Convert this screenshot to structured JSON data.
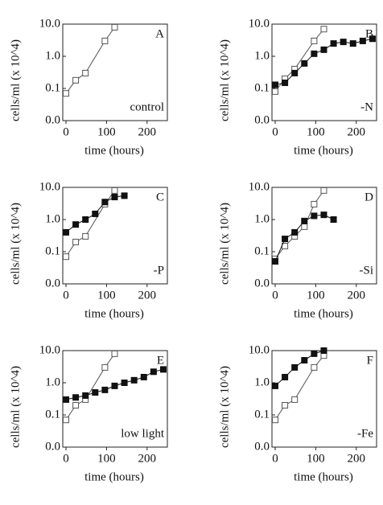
{
  "chart_data": [
    {
      "type": "line",
      "panel_label": "A",
      "annotation": "control",
      "x_label": "time (hours)",
      "y_label": "cells/ml (x 10^4)",
      "xlim": [
        0,
        250
      ],
      "ylim": [
        0.01,
        10
      ],
      "log_y": true,
      "xticks": [
        0,
        100,
        200
      ],
      "yticks": [
        {
          "value": 0.01,
          "label": "0.0"
        },
        {
          "value": 0.1,
          "label": "0.1"
        },
        {
          "value": 1,
          "label": "1.0"
        },
        {
          "value": 10,
          "label": "10.0"
        }
      ],
      "series": [
        {
          "color": "#555555",
          "marker": "open",
          "x": [
            0,
            24,
            48,
            96,
            120
          ],
          "values": [
            0.07,
            0.18,
            0.3,
            3,
            8
          ]
        }
      ]
    },
    {
      "type": "line",
      "panel_label": "B",
      "annotation": "-N",
      "x_label": "time (hours)",
      "y_label": "cells/ml (x 10^4)",
      "xlim": [
        0,
        250
      ],
      "ylim": [
        0.01,
        10
      ],
      "log_y": true,
      "xticks": [
        0,
        100,
        200
      ],
      "yticks": [
        {
          "value": 0.01,
          "label": "0.0"
        },
        {
          "value": 0.1,
          "label": "0.1"
        },
        {
          "value": 1,
          "label": "1.0"
        },
        {
          "value": 10,
          "label": "10.0"
        }
      ],
      "series": [
        {
          "color": "#555555",
          "marker": "open",
          "x": [
            0,
            24,
            48,
            96,
            120
          ],
          "values": [
            0.08,
            0.2,
            0.4,
            3,
            7
          ]
        },
        {
          "color": "#111111",
          "marker": "filled",
          "x": [
            0,
            24,
            48,
            72,
            96,
            120,
            144,
            168,
            192,
            216,
            240
          ],
          "values": [
            0.13,
            0.15,
            0.3,
            0.6,
            1.2,
            1.6,
            2.5,
            2.8,
            2.5,
            3,
            3.5
          ]
        }
      ]
    },
    {
      "type": "line",
      "panel_label": "C",
      "annotation": "-P",
      "x_label": "time (hours)",
      "y_label": "cells/ml (x 10^4)",
      "xlim": [
        0,
        250
      ],
      "ylim": [
        0.01,
        10
      ],
      "log_y": true,
      "xticks": [
        0,
        100,
        200
      ],
      "yticks": [
        {
          "value": 0.01,
          "label": "0.0"
        },
        {
          "value": 0.1,
          "label": "0.1"
        },
        {
          "value": 1,
          "label": "1.0"
        },
        {
          "value": 10,
          "label": "10.0"
        }
      ],
      "series": [
        {
          "color": "#555555",
          "marker": "open",
          "x": [
            0,
            24,
            48,
            96,
            120
          ],
          "values": [
            0.07,
            0.2,
            0.3,
            3,
            8
          ]
        },
        {
          "color": "#111111",
          "marker": "filled",
          "x": [
            0,
            24,
            48,
            72,
            96,
            120,
            144
          ],
          "values": [
            0.4,
            0.7,
            1.0,
            1.5,
            3.5,
            5,
            5.5
          ]
        }
      ]
    },
    {
      "type": "line",
      "panel_label": "D",
      "annotation": "-Si",
      "x_label": "time (hours)",
      "y_label": "cells/ml (x 10^4)",
      "xlim": [
        0,
        250
      ],
      "ylim": [
        0.01,
        10
      ],
      "log_y": true,
      "xticks": [
        0,
        100,
        200
      ],
      "yticks": [
        {
          "value": 0.01,
          "label": "0.0"
        },
        {
          "value": 0.1,
          "label": "0.1"
        },
        {
          "value": 1,
          "label": "1.0"
        },
        {
          "value": 10,
          "label": "10.0"
        }
      ],
      "series": [
        {
          "color": "#555555",
          "marker": "open",
          "x": [
            0,
            24,
            48,
            72,
            96,
            120
          ],
          "values": [
            0.06,
            0.15,
            0.3,
            0.6,
            3,
            8
          ]
        },
        {
          "color": "#111111",
          "marker": "filled",
          "x": [
            0,
            24,
            48,
            72,
            96,
            120,
            144
          ],
          "values": [
            0.05,
            0.25,
            0.4,
            0.9,
            1.3,
            1.4,
            1.0
          ]
        }
      ]
    },
    {
      "type": "line",
      "panel_label": "E",
      "annotation": "low light",
      "x_label": "time (hours)",
      "y_label": "cells/ml (x 10^4)",
      "xlim": [
        0,
        250
      ],
      "ylim": [
        0.01,
        10
      ],
      "log_y": true,
      "xticks": [
        0,
        100,
        200
      ],
      "yticks": [
        {
          "value": 0.01,
          "label": "0.0"
        },
        {
          "value": 0.1,
          "label": "0.1"
        },
        {
          "value": 1,
          "label": "1.0"
        },
        {
          "value": 10,
          "label": "10.0"
        }
      ],
      "series": [
        {
          "color": "#555555",
          "marker": "open",
          "x": [
            0,
            24,
            48,
            96,
            120
          ],
          "values": [
            0.07,
            0.2,
            0.3,
            3,
            8
          ]
        },
        {
          "color": "#111111",
          "marker": "filled",
          "x": [
            0,
            24,
            48,
            72,
            96,
            120,
            144,
            168,
            192,
            216,
            240
          ],
          "values": [
            0.3,
            0.35,
            0.4,
            0.5,
            0.6,
            0.8,
            1.0,
            1.2,
            1.5,
            2.2,
            2.6
          ]
        }
      ]
    },
    {
      "type": "line",
      "panel_label": "F",
      "annotation": "-Fe",
      "x_label": "time (hours)",
      "y_label": "cells/ml (x 10^4)",
      "xlim": [
        0,
        250
      ],
      "ylim": [
        0.01,
        10
      ],
      "log_y": true,
      "xticks": [
        0,
        100,
        200
      ],
      "yticks": [
        {
          "value": 0.01,
          "label": "0.0"
        },
        {
          "value": 0.1,
          "label": "0.1"
        },
        {
          "value": 1,
          "label": "1.0"
        },
        {
          "value": 10,
          "label": "10.0"
        }
      ],
      "series": [
        {
          "color": "#555555",
          "marker": "open",
          "x": [
            0,
            24,
            48,
            96,
            120
          ],
          "values": [
            0.07,
            0.2,
            0.3,
            3,
            7
          ]
        },
        {
          "color": "#111111",
          "marker": "filled",
          "x": [
            0,
            24,
            48,
            72,
            96,
            120
          ],
          "values": [
            0.8,
            1.5,
            3,
            5,
            8,
            10
          ]
        }
      ]
    }
  ]
}
